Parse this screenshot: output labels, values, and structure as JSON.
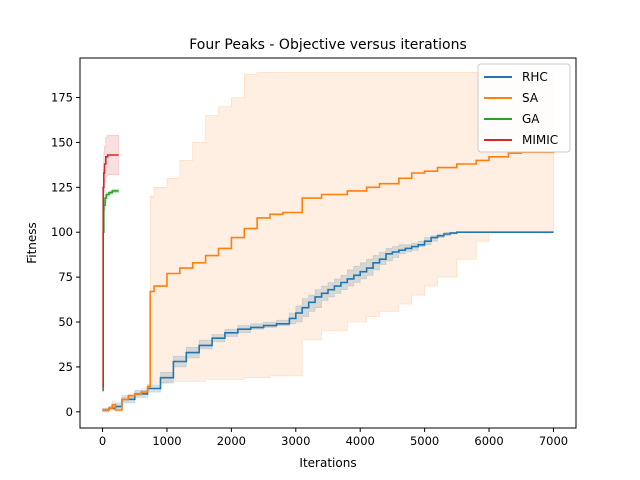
{
  "chart_data": {
    "type": "line",
    "title": "Four Peaks - Objective versus iterations",
    "xlabel": "Iterations",
    "ylabel": "Fitness",
    "xlim": [
      -350,
      7350
    ],
    "ylim": [
      -9,
      197
    ],
    "xticks": [
      0,
      1000,
      2000,
      3000,
      4000,
      5000,
      6000,
      7000
    ],
    "yticks": [
      0,
      25,
      50,
      75,
      100,
      125,
      150,
      175
    ],
    "grid": false,
    "legend_position": "top-right",
    "series": [
      {
        "name": "RHC",
        "color": "#1f77b4",
        "band_opacity": 0.2,
        "x": [
          0,
          100,
          200,
          300,
          500,
          700,
          900,
          1100,
          1300,
          1500,
          1700,
          1900,
          2100,
          2300,
          2500,
          2700,
          2900,
          3000,
          3100,
          3200,
          3300,
          3400,
          3500,
          3600,
          3700,
          3800,
          3900,
          4000,
          4100,
          4200,
          4300,
          4400,
          4500,
          4600,
          4700,
          4800,
          4900,
          5000,
          5100,
          5200,
          5300,
          5400,
          5500,
          6000,
          6500,
          7000
        ],
        "y": [
          1,
          2,
          3,
          7,
          10,
          13,
          19,
          28,
          33,
          37,
          41,
          44,
          46,
          47,
          48,
          49,
          52,
          55,
          58,
          61,
          64,
          66,
          68,
          70,
          72,
          74,
          76,
          78,
          80,
          83,
          85,
          88,
          89,
          90,
          91,
          92,
          93,
          95,
          97,
          98,
          99,
          99.5,
          100,
          100,
          100,
          100
        ],
        "y_low": [
          0,
          1,
          2,
          5,
          8,
          11,
          16,
          25,
          30,
          35,
          39,
          42,
          44,
          46,
          47,
          48,
          49,
          50,
          53,
          56,
          58,
          62,
          64,
          66,
          68,
          70,
          72,
          74,
          76,
          79,
          82,
          84,
          86,
          88,
          89,
          90,
          92,
          93,
          95,
          97,
          98,
          99,
          100,
          100,
          100,
          100
        ],
        "y_high": [
          2,
          3,
          5,
          9,
          12,
          15,
          22,
          31,
          36,
          40,
          43,
          46,
          48,
          49,
          50,
          51,
          55,
          59,
          63,
          65,
          68,
          70,
          72,
          74,
          76,
          79,
          81,
          83,
          85,
          87,
          89,
          91,
          92,
          93,
          93,
          94,
          95,
          97,
          98,
          99,
          100,
          100,
          100,
          100,
          100,
          100
        ]
      },
      {
        "name": "SA",
        "color": "#ff7f0e",
        "band_opacity": 0.12,
        "x": [
          0,
          100,
          150,
          200,
          300,
          400,
          500,
          600,
          700,
          740,
          800,
          1000,
          1200,
          1400,
          1600,
          1800,
          2000,
          2200,
          2400,
          2600,
          2800,
          3000,
          3100,
          3400,
          3800,
          4100,
          4300,
          4600,
          4800,
          5000,
          5200,
          5500,
          5800,
          6000,
          6300,
          6500,
          7000
        ],
        "y": [
          1,
          2,
          4,
          1,
          7,
          9,
          10,
          11,
          14,
          67,
          70,
          77,
          80,
          83,
          87,
          91,
          97,
          102,
          108,
          110,
          111,
          111,
          119,
          121,
          123,
          125,
          127,
          130,
          133,
          134,
          136,
          138,
          140,
          142,
          144,
          144.5,
          145
        ],
        "y_low": [
          0,
          1,
          1,
          0,
          6,
          8,
          9,
          10,
          13,
          16,
          16,
          17,
          17,
          17,
          18,
          18,
          18,
          19,
          19,
          20,
          20,
          20,
          40,
          45,
          50,
          53,
          56,
          60,
          65,
          70,
          75,
          85,
          95,
          100,
          100,
          100,
          100
        ],
        "y_high": [
          2,
          3,
          6,
          3,
          8,
          10,
          11,
          13,
          15,
          120,
          125,
          130,
          140,
          150,
          165,
          170,
          175,
          188,
          189,
          189,
          189,
          189,
          189,
          189,
          189,
          189,
          189,
          189,
          189,
          189,
          189,
          189,
          189,
          189,
          189,
          189,
          189
        ]
      },
      {
        "name": "GA",
        "color": "#2ca02c",
        "band_opacity": 0.2,
        "x": [
          0,
          10,
          20,
          40,
          60,
          100,
          150,
          200,
          250
        ],
        "y": [
          12,
          100,
          115,
          119,
          121,
          122,
          123,
          123,
          123
        ],
        "y_low": [
          11,
          95,
          112,
          117,
          120,
          121,
          122,
          122,
          122
        ],
        "y_high": [
          13,
          105,
          118,
          121,
          122,
          123,
          124,
          124,
          124
        ]
      },
      {
        "name": "MIMIC",
        "color": "#d62728",
        "band_opacity": 0.15,
        "x": [
          0,
          10,
          20,
          30,
          50,
          80,
          120,
          160,
          200,
          250
        ],
        "y": [
          14,
          125,
          133,
          138,
          142,
          143,
          143,
          143,
          143,
          143
        ],
        "y_low": [
          12,
          115,
          122,
          128,
          131,
          132,
          132,
          132,
          132,
          132
        ],
        "y_high": [
          16,
          135,
          144,
          148,
          153,
          154,
          154,
          154,
          154,
          154
        ]
      }
    ]
  }
}
